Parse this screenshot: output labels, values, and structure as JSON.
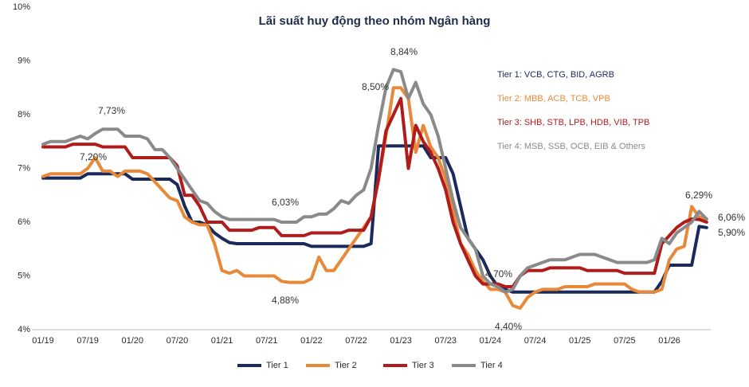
{
  "chart_data": {
    "type": "line",
    "title": "Lãi suất huy động theo nhóm Ngân hàng",
    "categories": [
      "01/19",
      null,
      null,
      null,
      null,
      null,
      "07/19",
      null,
      null,
      null,
      null,
      null,
      "01/20",
      null,
      null,
      null,
      null,
      null,
      "07/20",
      null,
      null,
      null,
      null,
      null,
      "01/21",
      null,
      null,
      null,
      null,
      null,
      "07/21",
      null,
      null,
      null,
      null,
      null,
      "01/22",
      null,
      null,
      null,
      null,
      null,
      "07/22",
      null,
      null,
      null,
      null,
      null,
      "01/23",
      null,
      null,
      null,
      null,
      null,
      "07/23",
      null,
      null,
      null,
      null,
      null,
      "01/24",
      null,
      null,
      null,
      null,
      null,
      "07/24",
      null,
      null,
      null,
      null,
      null,
      "01/25",
      null,
      null,
      null,
      null,
      null,
      "07/25",
      null,
      null,
      null,
      null,
      null,
      "01/26",
      null,
      null,
      null,
      null,
      null
    ],
    "series": [
      {
        "name": "Tier 1",
        "color": "#1b2a5c",
        "values": [
          6.82,
          6.82,
          6.82,
          6.82,
          6.82,
          6.82,
          6.9,
          6.9,
          6.9,
          6.9,
          6.9,
          6.9,
          6.8,
          6.8,
          6.8,
          6.8,
          6.8,
          6.8,
          6.7,
          6.3,
          6.0,
          6.0,
          5.95,
          5.8,
          5.7,
          5.62,
          5.6,
          5.6,
          5.6,
          5.6,
          5.6,
          5.6,
          5.6,
          5.6,
          5.6,
          5.6,
          5.55,
          5.55,
          5.55,
          5.55,
          5.55,
          5.55,
          5.55,
          5.55,
          5.6,
          7.42,
          7.42,
          7.42,
          7.42,
          7.42,
          7.42,
          7.42,
          7.2,
          7.2,
          7.2,
          6.9,
          6.3,
          5.7,
          5.5,
          5.3,
          5.0,
          4.8,
          4.75,
          4.7,
          4.7,
          4.7,
          4.7,
          4.7,
          4.7,
          4.7,
          4.7,
          4.7,
          4.7,
          4.7,
          4.7,
          4.7,
          4.7,
          4.7,
          4.7,
          4.7,
          4.7,
          4.7,
          4.7,
          4.9,
          5.2,
          5.2,
          5.2,
          5.2,
          5.92,
          5.9
        ]
      },
      {
        "name": "Tier 2",
        "color": "#e8893a",
        "values": [
          6.85,
          6.9,
          6.9,
          6.9,
          6.9,
          6.9,
          7.0,
          7.2,
          6.95,
          6.95,
          6.85,
          6.95,
          6.95,
          6.95,
          6.9,
          6.75,
          6.6,
          6.45,
          6.4,
          6.1,
          6.0,
          5.95,
          5.95,
          5.6,
          5.1,
          5.05,
          5.1,
          5.0,
          5.0,
          5.0,
          5.0,
          5.0,
          4.9,
          4.88,
          4.88,
          4.88,
          4.95,
          5.35,
          5.1,
          5.1,
          5.3,
          5.5,
          5.7,
          5.9,
          6.1,
          6.8,
          7.6,
          8.5,
          8.5,
          8.3,
          7.3,
          7.8,
          7.4,
          7.2,
          6.8,
          6.2,
          5.6,
          5.4,
          5.1,
          4.9,
          4.75,
          4.75,
          4.7,
          4.45,
          4.4,
          4.6,
          4.7,
          4.75,
          4.75,
          4.75,
          4.8,
          4.8,
          4.8,
          4.8,
          4.85,
          4.85,
          4.85,
          4.85,
          4.85,
          4.75,
          4.7,
          4.7,
          4.7,
          4.75,
          5.3,
          5.5,
          5.55,
          6.29,
          6.1,
          6.06
        ]
      },
      {
        "name": "Tier 3",
        "color": "#b01c1c",
        "values": [
          7.4,
          7.4,
          7.4,
          7.4,
          7.45,
          7.45,
          7.45,
          7.45,
          7.4,
          7.4,
          7.4,
          7.4,
          7.2,
          7.2,
          7.2,
          7.2,
          7.2,
          7.2,
          7.05,
          6.5,
          6.5,
          6.3,
          6.0,
          6.0,
          6.0,
          5.85,
          5.85,
          5.85,
          5.85,
          5.9,
          5.9,
          5.9,
          5.75,
          5.75,
          5.75,
          5.75,
          5.8,
          5.8,
          5.8,
          5.8,
          5.8,
          5.85,
          5.85,
          5.85,
          6.1,
          6.8,
          7.7,
          8.0,
          8.3,
          7.0,
          7.8,
          7.5,
          7.3,
          7.0,
          6.6,
          6.0,
          5.6,
          5.3,
          5.0,
          4.85,
          4.85,
          4.85,
          4.8,
          4.8,
          5.0,
          5.1,
          5.1,
          5.1,
          5.15,
          5.15,
          5.15,
          5.15,
          5.15,
          5.1,
          5.1,
          5.1,
          5.1,
          5.1,
          5.05,
          5.05,
          5.05,
          5.05,
          5.05,
          5.6,
          5.75,
          5.9,
          6.0,
          6.06,
          6.05,
          6.0
        ]
      },
      {
        "name": "Tier 4",
        "color": "#8a8a8a",
        "values": [
          7.45,
          7.5,
          7.5,
          7.5,
          7.55,
          7.6,
          7.55,
          7.65,
          7.73,
          7.73,
          7.73,
          7.6,
          7.6,
          7.6,
          7.55,
          7.35,
          7.35,
          7.2,
          7.0,
          6.8,
          6.6,
          6.4,
          6.35,
          6.2,
          6.1,
          6.05,
          6.05,
          6.05,
          6.05,
          6.05,
          6.05,
          6.05,
          6.0,
          6.0,
          6.0,
          6.1,
          6.1,
          6.15,
          6.15,
          6.25,
          6.4,
          6.35,
          6.5,
          6.6,
          7.0,
          7.8,
          8.5,
          8.84,
          8.8,
          8.3,
          8.6,
          8.2,
          8.0,
          7.6,
          7.0,
          6.4,
          5.9,
          5.7,
          5.5,
          5.0,
          4.85,
          4.8,
          4.7,
          4.75,
          5.0,
          5.15,
          5.2,
          5.25,
          5.3,
          5.3,
          5.3,
          5.35,
          5.4,
          5.4,
          5.4,
          5.35,
          5.3,
          5.25,
          5.25,
          5.25,
          5.25,
          5.25,
          5.3,
          5.7,
          5.6,
          5.8,
          5.9,
          6.0,
          6.2,
          6.06
        ]
      }
    ],
    "ylim": [
      4,
      10
    ],
    "yticks": [
      {
        "value": 4,
        "label": "4%"
      },
      {
        "value": 5,
        "label": "5%"
      },
      {
        "value": 6,
        "label": "6%"
      },
      {
        "value": 7,
        "label": "7%"
      },
      {
        "value": 8,
        "label": "8%"
      },
      {
        "value": 9,
        "label": "9%"
      },
      {
        "value": 10,
        "label": "10%"
      }
    ],
    "annotations": [
      "7,73%",
      "7,20%",
      "6,03%",
      "4,88%",
      "8,50%",
      "8,84%",
      "4,70%",
      "4,40%",
      "6,29%",
      "6,06%",
      "5,90%"
    ],
    "notes": [
      "Tier 1: VCB, CTG, BID, AGRB",
      "Tier 2: MBB, ACB, TCB, VPB",
      "Tier 3: SHB, STB, LPB, HDB, VIB, TPB",
      "Tier 4: MSB, SSB, OCB, EIB & Others"
    ],
    "legend": "bottom"
  }
}
